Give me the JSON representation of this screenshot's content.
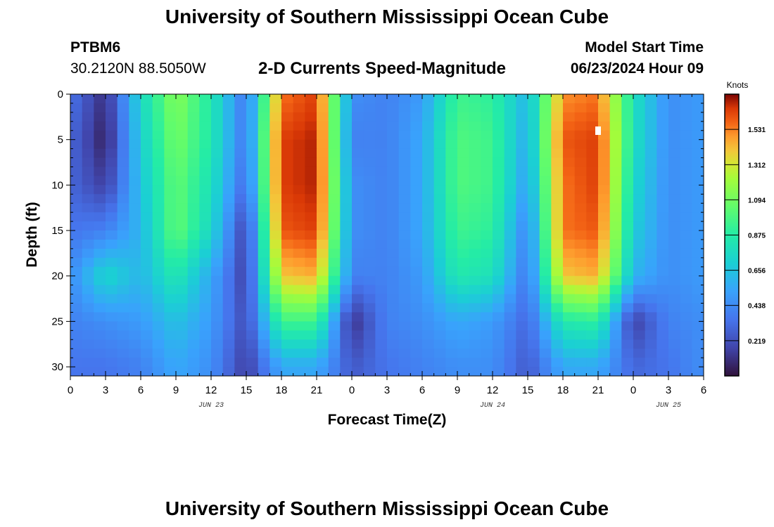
{
  "header": {
    "title": "University of Southern Mississippi Ocean Cube",
    "station_id": "PTBM6",
    "coordinates": "30.2120N  88.5050W",
    "subtitle": "2-D Currents Speed-Magnitude",
    "model_label": "Model Start Time",
    "model_datetime": "06/23/2024 Hour 09"
  },
  "footer": {
    "title": "University of Southern Mississippi Ocean Cube"
  },
  "chart_data": {
    "type": "heatmap",
    "title": "2-D Currents Speed-Magnitude",
    "xlabel": "Forecast Time(Z)",
    "ylabel": "Depth (ft)",
    "x_unit": "hours from 06/23 00Z",
    "xlim": [
      0,
      54
    ],
    "ylim": [
      31,
      0
    ],
    "x_ticks": [
      0,
      3,
      6,
      9,
      12,
      15,
      18,
      21,
      24,
      27,
      30,
      33,
      36,
      39,
      42,
      45,
      48,
      51,
      54
    ],
    "x_tick_labels": [
      "0",
      "3",
      "6",
      "9",
      "12",
      "15",
      "18",
      "21",
      "0",
      "3",
      "6",
      "9",
      "12",
      "15",
      "18",
      "21",
      "0",
      "3",
      "6"
    ],
    "y_ticks": [
      0,
      5,
      10,
      15,
      20,
      25,
      30
    ],
    "y_tick_labels": [
      "0",
      "5",
      "10",
      "15",
      "20",
      "25",
      "30"
    ],
    "date_labels": [
      {
        "x": 12,
        "text": "JUN 23"
      },
      {
        "x": 36,
        "text": "JUN 24"
      },
      {
        "x": 51,
        "text": "JUN 25"
      }
    ],
    "colorbar": {
      "unit": "Knots",
      "vmin": 0,
      "vmax": 1.75,
      "ticks": [
        0.219,
        0.438,
        0.656,
        0.875,
        1.094,
        1.312,
        1.531
      ],
      "tick_labels": [
        "0.219",
        "0.438",
        "0.656",
        "0.875",
        "1.094",
        "1.312",
        "1.531"
      ]
    },
    "speed_field": {
      "grid": "values in knots sampled every 3 h (x) by every 5 ft (y); rows = depth 0,5,10,15,20,25,30",
      "x": [
        0,
        3,
        6,
        9,
        12,
        15,
        18,
        21,
        24,
        27,
        30,
        33,
        36,
        39,
        42,
        45,
        48,
        51,
        54
      ],
      "depth": [
        0,
        5,
        10,
        15,
        20,
        25,
        30
      ],
      "values": [
        [
          0.35,
          0.1,
          0.75,
          1.15,
          0.85,
          0.35,
          1.55,
          1.65,
          0.45,
          0.4,
          0.5,
          0.95,
          0.9,
          0.6,
          1.5,
          1.55,
          0.8,
          0.45,
          0.5
        ],
        [
          0.3,
          0.05,
          0.7,
          1.1,
          0.85,
          0.35,
          1.65,
          1.7,
          0.4,
          0.4,
          0.55,
          1.0,
          0.95,
          0.55,
          1.6,
          1.65,
          0.8,
          0.45,
          0.5
        ],
        [
          0.3,
          0.15,
          0.65,
          1.05,
          0.8,
          0.3,
          1.65,
          1.7,
          0.45,
          0.4,
          0.55,
          1.0,
          0.95,
          0.5,
          1.55,
          1.65,
          0.75,
          0.45,
          0.5
        ],
        [
          0.35,
          0.4,
          0.6,
          1.05,
          0.75,
          0.15,
          1.6,
          1.65,
          0.45,
          0.4,
          0.55,
          0.95,
          0.9,
          0.4,
          1.55,
          1.6,
          0.7,
          0.45,
          0.5
        ],
        [
          0.45,
          0.75,
          0.6,
          0.85,
          0.55,
          0.15,
          1.4,
          1.45,
          0.4,
          0.4,
          0.5,
          0.85,
          0.8,
          0.35,
          1.4,
          1.45,
          0.6,
          0.45,
          0.5
        ],
        [
          0.4,
          0.45,
          0.5,
          0.65,
          0.5,
          0.2,
          0.95,
          0.95,
          0.1,
          0.4,
          0.45,
          0.55,
          0.5,
          0.3,
          0.85,
          0.9,
          0.15,
          0.4,
          0.45
        ],
        [
          0.35,
          0.35,
          0.4,
          0.55,
          0.45,
          0.15,
          0.55,
          0.55,
          0.25,
          0.35,
          0.4,
          0.45,
          0.45,
          0.25,
          0.55,
          0.55,
          0.3,
          0.35,
          0.45
        ]
      ]
    }
  }
}
